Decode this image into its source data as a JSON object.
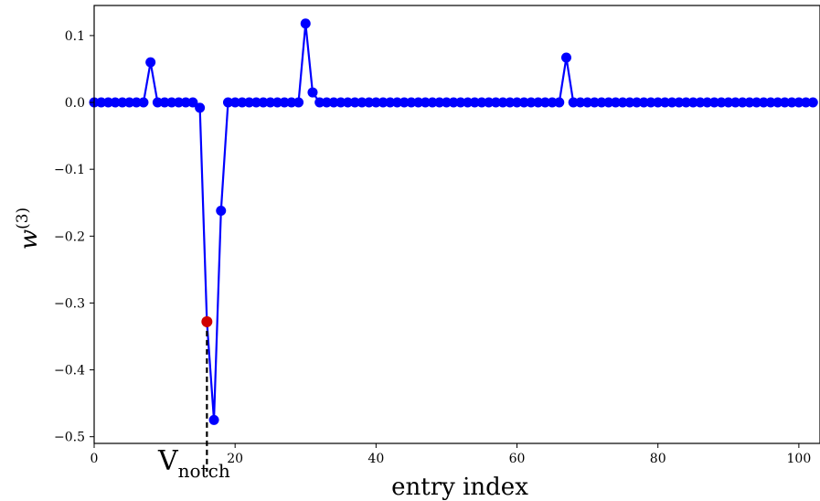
{
  "chart_data": {
    "type": "line",
    "xlabel": "entry index",
    "ylabel": "w",
    "ylabel_superscript": "(3)",
    "xlim": [
      0,
      103
    ],
    "ylim": [
      -0.51,
      0.145
    ],
    "xticks": [
      0,
      20,
      40,
      60,
      80,
      100
    ],
    "yticks": [
      0.1,
      0.0,
      -0.1,
      -0.2,
      -0.3,
      -0.4,
      -0.5
    ],
    "xtick_labels": [
      "0",
      "20",
      "40",
      "60",
      "80",
      "100"
    ],
    "ytick_labels": [
      "0.1",
      "0.0",
      "−0.1",
      "−0.2",
      "−0.3",
      "−0.4",
      "−0.5"
    ],
    "grid": false,
    "series": [
      {
        "color": "#0000ff",
        "marker": "circle",
        "x": [
          0,
          1,
          2,
          3,
          4,
          5,
          6,
          7,
          8,
          9,
          10,
          11,
          12,
          13,
          14,
          15,
          16,
          17,
          18,
          19,
          20,
          21,
          22,
          23,
          24,
          25,
          26,
          27,
          28,
          29,
          30,
          31,
          32,
          33,
          34,
          35,
          36,
          37,
          38,
          39,
          40,
          41,
          42,
          43,
          44,
          45,
          46,
          47,
          48,
          49,
          50,
          51,
          52,
          53,
          54,
          55,
          56,
          57,
          58,
          59,
          60,
          61,
          62,
          63,
          64,
          65,
          66,
          67,
          68,
          69,
          70,
          71,
          72,
          73,
          74,
          75,
          76,
          77,
          78,
          79,
          80,
          81,
          82,
          83,
          84,
          85,
          86,
          87,
          88,
          89,
          90,
          91,
          92,
          93,
          94,
          95,
          96,
          97,
          98,
          99,
          100,
          101,
          102
        ],
        "y": [
          0,
          0,
          0,
          0,
          0,
          0,
          0,
          0,
          0.06,
          0,
          0,
          0,
          0,
          0,
          0,
          -0.008,
          -0.328,
          -0.475,
          -0.162,
          0,
          0,
          0,
          0,
          0,
          0,
          0,
          0,
          0,
          0,
          0,
          0.118,
          0.015,
          0,
          0,
          0,
          0,
          0,
          0,
          0,
          0,
          0,
          0,
          0,
          0,
          0,
          0,
          0,
          0,
          0,
          0,
          0,
          0,
          0,
          0,
          0,
          0,
          0,
          0,
          0,
          0,
          0,
          0,
          0,
          0,
          0,
          0,
          0,
          0.067,
          0,
          0,
          0,
          0,
          0,
          0,
          0,
          0,
          0,
          0,
          0,
          0,
          0,
          0,
          0,
          0,
          0,
          0,
          0,
          0,
          0,
          0,
          0,
          0,
          0,
          0,
          0,
          0,
          0,
          0,
          0,
          0,
          0,
          0,
          0
        ]
      }
    ],
    "highlight": {
      "x": 16,
      "y": -0.328,
      "color": "#d00000"
    },
    "annotation": {
      "text": "V",
      "subscript": "notch",
      "x": 16
    }
  }
}
